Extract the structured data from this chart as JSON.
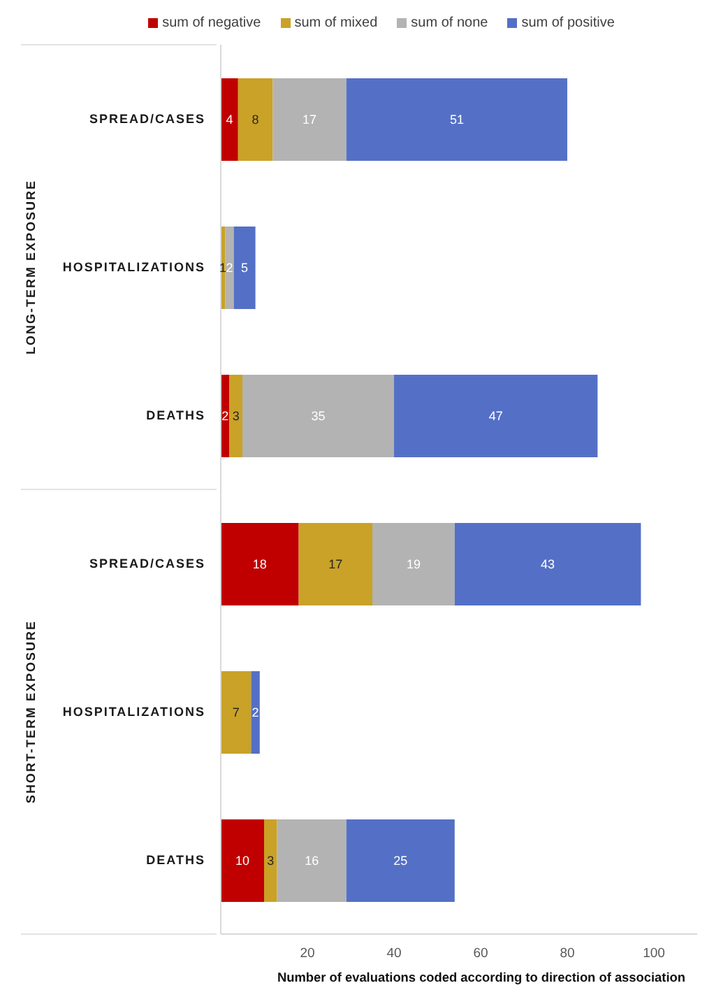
{
  "chart_data": {
    "type": "bar",
    "orientation": "horizontal",
    "stacked": true,
    "xlabel": "Number of evaluations coded according to direction of association",
    "categories": [
      "SPREAD/CASES",
      "HOSPITALIZATIONS",
      "DEATHS",
      "SPREAD/CASES",
      "HOSPITALIZATIONS",
      "DEATHS"
    ],
    "annotations": [
      "LONG-TERM EXPOSURE",
      "SHORT-TERM EXPOSURE"
    ],
    "series": [
      {
        "name": "sum of negative",
        "color": "#c00000",
        "values": [
          4,
          null,
          2,
          18,
          null,
          10
        ]
      },
      {
        "name": "sum of mixed",
        "color": "#c9a227",
        "values": [
          8,
          1,
          3,
          17,
          7,
          3
        ]
      },
      {
        "name": "sum of none",
        "color": "#b3b3b3",
        "values": [
          17,
          2,
          35,
          19,
          null,
          16
        ]
      },
      {
        "name": "sum of positive",
        "color": "#5470c6",
        "values": [
          51,
          5,
          47,
          43,
          2,
          25
        ]
      }
    ],
    "xlim": [
      0,
      110
    ],
    "xticks": [
      20,
      40,
      60,
      80,
      100
    ],
    "data_labels": true,
    "legend": "top"
  }
}
